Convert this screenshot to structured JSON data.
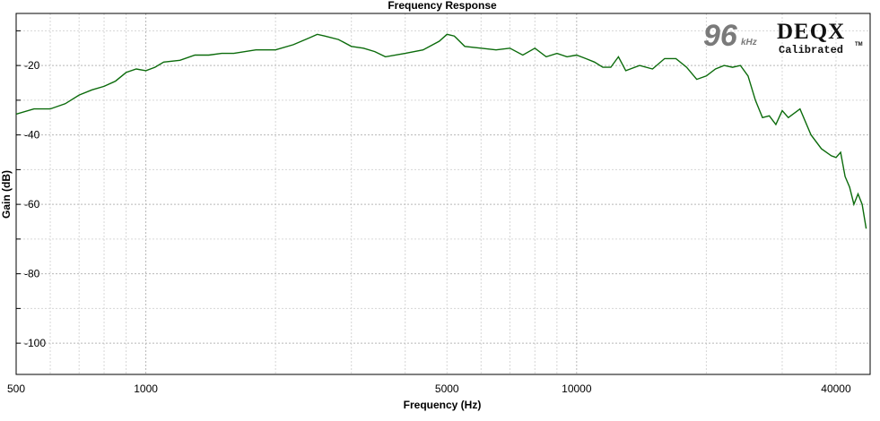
{
  "chart_data": {
    "type": "line",
    "title": "Frequency Response",
    "xlabel": "Frequency (Hz)",
    "ylabel": "Gain (dB)",
    "x_scale": "log",
    "xlim": [
      500,
      48000
    ],
    "ylim": [
      -109,
      -5
    ],
    "x_ticks": [
      500,
      1000,
      5000,
      10000,
      40000
    ],
    "y_ticks": [
      -20,
      -40,
      -60,
      -80,
      -100
    ],
    "grid": true,
    "series": [
      {
        "color": "#0b6b0b",
        "x": [
          500,
          550,
          600,
          650,
          700,
          750,
          800,
          850,
          900,
          950,
          1000,
          1050,
          1100,
          1200,
          1300,
          1400,
          1500,
          1600,
          1800,
          2000,
          2200,
          2400,
          2500,
          2600,
          2800,
          3000,
          3200,
          3400,
          3600,
          4000,
          4400,
          4800,
          5000,
          5200,
          5500,
          6000,
          6500,
          7000,
          7500,
          8000,
          8500,
          9000,
          9500,
          10000,
          10500,
          11000,
          11500,
          12000,
          12500,
          13000,
          14000,
          15000,
          16000,
          17000,
          18000,
          19000,
          20000,
          21000,
          22000,
          23000,
          24000,
          25000,
          26000,
          27000,
          28000,
          29000,
          30000,
          31000,
          33000,
          35000,
          37000,
          39000,
          40000,
          41000,
          42000,
          43000,
          44000,
          45000,
          46000,
          47000
        ],
        "y": [
          -34,
          -32.5,
          -32.5,
          -31,
          -28.5,
          -27,
          -26,
          -24.5,
          -22,
          -21,
          -21.5,
          -20.5,
          -19,
          -18.5,
          -17,
          -17,
          -16.5,
          -16.5,
          -15.5,
          -15.5,
          -14,
          -12,
          -11,
          -11.5,
          -12.5,
          -14.5,
          -15,
          -16,
          -17.5,
          -16.5,
          -15.5,
          -13,
          -11,
          -11.5,
          -14.5,
          -15,
          -15.5,
          -15,
          -17,
          -15,
          -17.5,
          -16.5,
          -17.5,
          -17,
          -18,
          -19,
          -20.5,
          -20.5,
          -17.5,
          -21.5,
          -20,
          -21,
          -18,
          -18,
          -20.5,
          -24,
          -23,
          -21,
          -20,
          -20.5,
          -20,
          -23,
          -30,
          -35,
          -34.5,
          -37,
          -33,
          -35,
          -32.5,
          -40,
          -44,
          -46,
          -46.5,
          -45,
          -52,
          -55,
          -60,
          -57,
          -60,
          -67
        ]
      }
    ]
  },
  "branding": {
    "rate_value": "96",
    "rate_unit": "kHz",
    "brand_name": "DEQX",
    "brand_subtitle": "Calibrated",
    "trademark": "TM"
  }
}
